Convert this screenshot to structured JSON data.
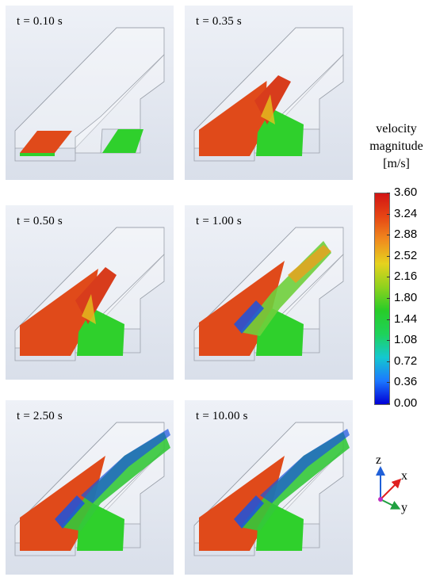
{
  "panels": [
    {
      "label": "t = 0.10 s",
      "stage": 0
    },
    {
      "label": "t = 0.35 s",
      "stage": 1
    },
    {
      "label": "t = 0.50 s",
      "stage": 2
    },
    {
      "label": "t = 1.00 s",
      "stage": 3
    },
    {
      "label": "t = 2.50 s",
      "stage": 4
    },
    {
      "label": "t = 10.00 s",
      "stage": 5
    }
  ],
  "legend": {
    "title_lines": [
      "velocity",
      "magnitude",
      "[m/s]"
    ],
    "ticks": [
      "3.60",
      "3.24",
      "2.88",
      "2.52",
      "2.16",
      "1.80",
      "1.44",
      "1.08",
      "0.72",
      "0.36",
      "0.00"
    ],
    "min": 0.0,
    "max": 3.6,
    "colors": [
      "#0000d6",
      "#1c78ff",
      "#14c8d0",
      "#1ed25a",
      "#28cc28",
      "#8fd21e",
      "#e6d21e",
      "#f08c1e",
      "#e64614",
      "#d21414"
    ]
  },
  "axes": {
    "z": "z",
    "x": "x",
    "y": "y"
  },
  "colors": {
    "fast": "#e04a1a",
    "inlet_green": "#2fd02c",
    "blue": "#1a52e0",
    "outline": "#9aa0aa"
  }
}
